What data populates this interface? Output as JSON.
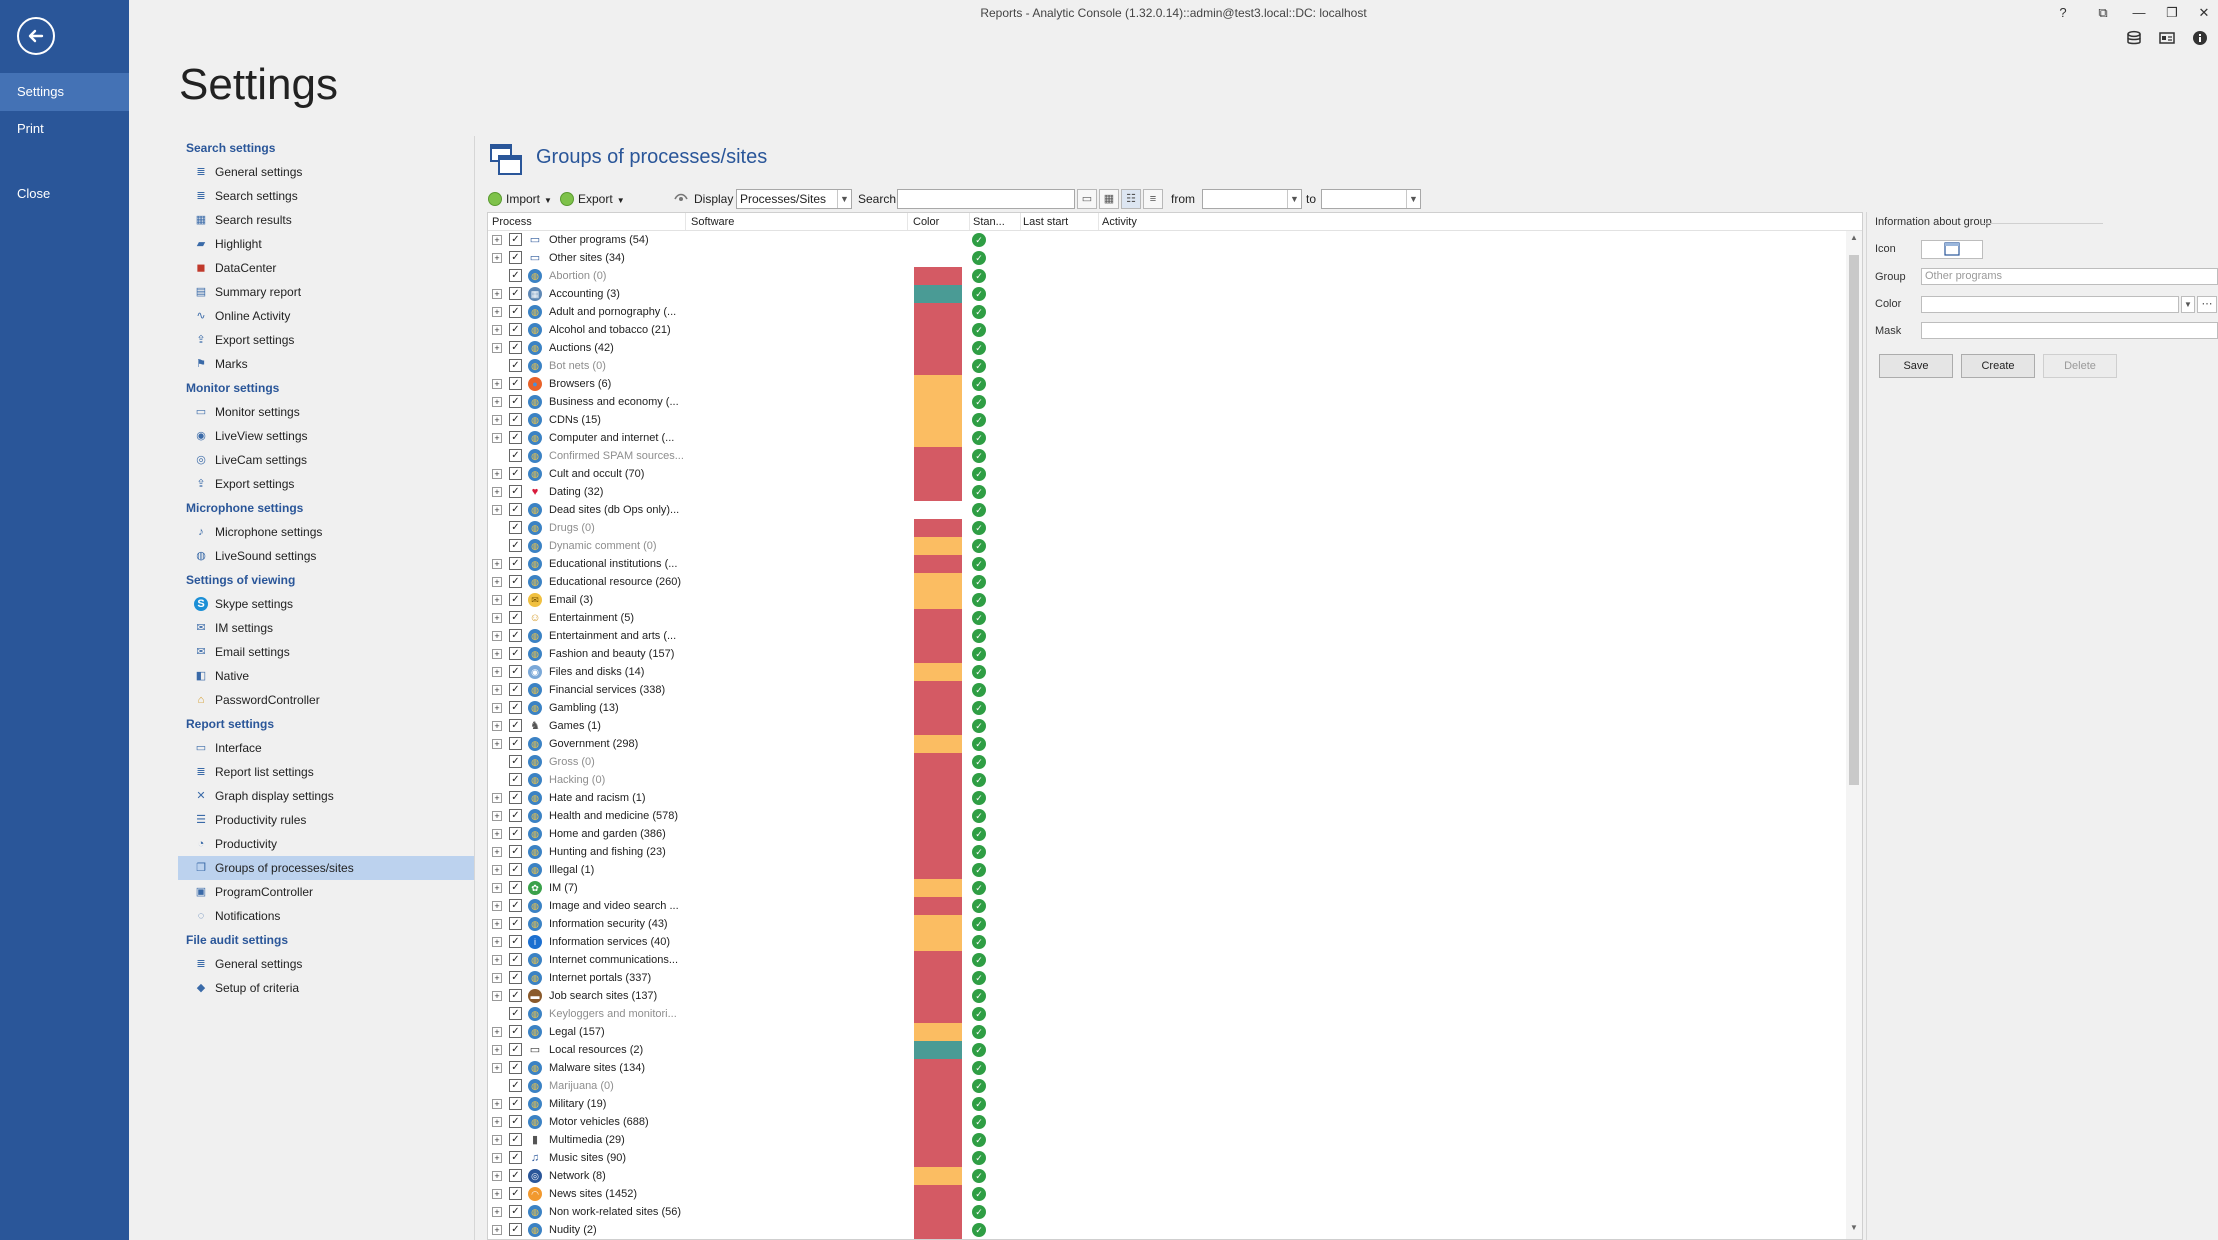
{
  "window": {
    "title": "Reports - Analytic Console (1.32.0.14)::admin@test3.local::DC: localhost",
    "controls": [
      "?",
      "⧉",
      "—",
      "❐",
      "✕"
    ],
    "ribbon_icons": [
      "database-icon",
      "id-card-icon",
      "info-icon"
    ]
  },
  "rail": {
    "items": [
      {
        "label": "Settings",
        "active": true
      },
      {
        "label": "Print",
        "active": false
      },
      {
        "label": "Close",
        "active": false
      }
    ]
  },
  "page": {
    "title": "Settings"
  },
  "nav": {
    "sections": [
      {
        "title": "Search settings",
        "items": [
          {
            "label": "General settings",
            "icon": "list-icon"
          },
          {
            "label": "Search settings",
            "icon": "list-icon"
          },
          {
            "label": "Search results",
            "icon": "table-icon"
          },
          {
            "label": "Highlight",
            "icon": "highlight-icon"
          },
          {
            "label": "DataCenter",
            "icon": "datacenter-icon"
          },
          {
            "label": "Summary report",
            "icon": "report-icon"
          },
          {
            "label": "Online Activity",
            "icon": "pulse-icon"
          },
          {
            "label": "Export settings",
            "icon": "export-icon"
          },
          {
            "label": "Marks",
            "icon": "flag-icon"
          }
        ]
      },
      {
        "title": "Monitor settings",
        "items": [
          {
            "label": "Monitor settings",
            "icon": "monitor-icon"
          },
          {
            "label": "LiveView settings",
            "icon": "eye-icon"
          },
          {
            "label": "LiveCam settings",
            "icon": "camera-icon"
          },
          {
            "label": "Export settings",
            "icon": "export-icon"
          }
        ]
      },
      {
        "title": "Microphone settings",
        "items": [
          {
            "label": "Microphone settings",
            "icon": "microphone-icon"
          },
          {
            "label": "LiveSound settings",
            "icon": "sound-icon"
          }
        ]
      },
      {
        "title": "Settings of viewing",
        "items": [
          {
            "label": "Skype settings",
            "icon": "skype-icon"
          },
          {
            "label": "IM settings",
            "icon": "chat-icon"
          },
          {
            "label": "Email settings",
            "icon": "email-icon"
          },
          {
            "label": "Native",
            "icon": "native-icon"
          },
          {
            "label": "PasswordController",
            "icon": "lock-icon"
          }
        ]
      },
      {
        "title": "Report settings",
        "items": [
          {
            "label": "Interface",
            "icon": "window-icon"
          },
          {
            "label": "Report list settings",
            "icon": "list-icon"
          },
          {
            "label": "Graph display settings",
            "icon": "graph-icon"
          },
          {
            "label": "Productivity rules",
            "icon": "rules-icon"
          },
          {
            "label": "Productivity",
            "icon": "gauge-icon"
          },
          {
            "label": "Groups of processes/sites",
            "icon": "groups-icon",
            "active": true
          },
          {
            "label": "ProgramController",
            "icon": "program-icon"
          },
          {
            "label": "Notifications",
            "icon": "bell-icon"
          }
        ]
      },
      {
        "title": "File audit settings",
        "items": [
          {
            "label": "General settings",
            "icon": "list-icon"
          },
          {
            "label": "Setup of criteria",
            "icon": "tag-icon"
          }
        ]
      }
    ]
  },
  "panel": {
    "title": "Groups of processes/sites",
    "toolbar": {
      "import_label": "Import",
      "export_label": "Export",
      "display_label": "Display",
      "display_value": "Processes/Sites",
      "search_label": "Search",
      "search_value": "",
      "from_label": "from",
      "from_value": "",
      "to_label": "to",
      "to_value": ""
    },
    "columns": [
      "Process",
      "Software",
      "Color",
      "Stan...",
      "Last start",
      "Activity"
    ],
    "rows": [
      {
        "name": "Other programs (54)",
        "expand": true,
        "color": "",
        "icon": "window-icon",
        "dim": false
      },
      {
        "name": "Other sites (34)",
        "expand": true,
        "color": "",
        "icon": "window-icon",
        "dim": false
      },
      {
        "name": "Abortion (0)",
        "expand": false,
        "color": "#d45a64",
        "icon": "globe-icon",
        "dim": true
      },
      {
        "name": "Accounting (3)",
        "expand": true,
        "color": "#4a9b95",
        "icon": "calculator-icon",
        "dim": false
      },
      {
        "name": "Adult and pornography (...",
        "expand": true,
        "color": "#d45a64",
        "icon": "globe-icon",
        "dim": false
      },
      {
        "name": "Alcohol and tobacco (21)",
        "expand": true,
        "color": "#d45a64",
        "icon": "globe-icon",
        "dim": false
      },
      {
        "name": "Auctions (42)",
        "expand": true,
        "color": "#d45a64",
        "icon": "globe-icon",
        "dim": false
      },
      {
        "name": "Bot nets (0)",
        "expand": false,
        "color": "#d45a64",
        "icon": "globe-icon",
        "dim": true
      },
      {
        "name": "Browsers (6)",
        "expand": true,
        "color": "#fbbd62",
        "icon": "browser-icon",
        "dim": false
      },
      {
        "name": "Business and economy (...",
        "expand": true,
        "color": "#fbbd62",
        "icon": "globe-icon",
        "dim": false
      },
      {
        "name": "CDNs (15)",
        "expand": true,
        "color": "#fbbd62",
        "icon": "globe-icon",
        "dim": false
      },
      {
        "name": "Computer and internet (...",
        "expand": true,
        "color": "#fbbd62",
        "icon": "globe-icon",
        "dim": false
      },
      {
        "name": "Confirmed SPAM sources...",
        "expand": false,
        "color": "#d45a64",
        "icon": "globe-icon",
        "dim": true
      },
      {
        "name": "Cult and occult (70)",
        "expand": true,
        "color": "#d45a64",
        "icon": "globe-icon",
        "dim": false
      },
      {
        "name": "Dating (32)",
        "expand": true,
        "color": "#d45a64",
        "icon": "heart-icon",
        "dim": false
      },
      {
        "name": "Dead sites (db Ops only)...",
        "expand": true,
        "color": "",
        "icon": "globe-icon",
        "dim": false
      },
      {
        "name": "Drugs (0)",
        "expand": false,
        "color": "#d45a64",
        "icon": "globe-icon",
        "dim": true
      },
      {
        "name": "Dynamic comment (0)",
        "expand": false,
        "color": "#fbbd62",
        "icon": "globe-icon",
        "dim": true
      },
      {
        "name": "Educational institutions (...",
        "expand": true,
        "color": "#d45a64",
        "icon": "globe-icon",
        "dim": false
      },
      {
        "name": "Educational resource (260)",
        "expand": true,
        "color": "#fbbd62",
        "icon": "globe-icon",
        "dim": false
      },
      {
        "name": "Email (3)",
        "expand": true,
        "color": "#fbbd62",
        "icon": "email-icon",
        "dim": false
      },
      {
        "name": "Entertainment (5)",
        "expand": true,
        "color": "#d45a64",
        "icon": "smiley-icon",
        "dim": false
      },
      {
        "name": "Entertainment and arts (...",
        "expand": true,
        "color": "#d45a64",
        "icon": "globe-icon",
        "dim": false
      },
      {
        "name": "Fashion and beauty (157)",
        "expand": true,
        "color": "#d45a64",
        "icon": "globe-icon",
        "dim": false
      },
      {
        "name": "Files and disks (14)",
        "expand": true,
        "color": "#fbbd62",
        "icon": "disk-icon",
        "dim": false
      },
      {
        "name": "Financial services (338)",
        "expand": true,
        "color": "#d45a64",
        "icon": "globe-icon",
        "dim": false
      },
      {
        "name": "Gambling (13)",
        "expand": true,
        "color": "#d45a64",
        "icon": "globe-icon",
        "dim": false
      },
      {
        "name": "Games (1)",
        "expand": true,
        "color": "#d45a64",
        "icon": "games-icon",
        "dim": false
      },
      {
        "name": "Government (298)",
        "expand": true,
        "color": "#fbbd62",
        "icon": "globe-icon",
        "dim": false
      },
      {
        "name": "Gross (0)",
        "expand": false,
        "color": "#d45a64",
        "icon": "globe-icon",
        "dim": true
      },
      {
        "name": "Hacking (0)",
        "expand": false,
        "color": "#d45a64",
        "icon": "globe-icon",
        "dim": true
      },
      {
        "name": "Hate and racism (1)",
        "expand": true,
        "color": "#d45a64",
        "icon": "globe-icon",
        "dim": false
      },
      {
        "name": "Health and medicine (578)",
        "expand": true,
        "color": "#d45a64",
        "icon": "globe-icon",
        "dim": false
      },
      {
        "name": "Home and garden (386)",
        "expand": true,
        "color": "#d45a64",
        "icon": "globe-icon",
        "dim": false
      },
      {
        "name": "Hunting and fishing (23)",
        "expand": true,
        "color": "#d45a64",
        "icon": "globe-icon",
        "dim": false
      },
      {
        "name": "Illegal (1)",
        "expand": true,
        "color": "#d45a64",
        "icon": "globe-icon",
        "dim": false
      },
      {
        "name": "IM (7)",
        "expand": true,
        "color": "#fbbd62",
        "icon": "im-icon",
        "dim": false
      },
      {
        "name": "Image and video search ...",
        "expand": true,
        "color": "#d45a64",
        "icon": "globe-icon",
        "dim": false
      },
      {
        "name": "Information security (43)",
        "expand": true,
        "color": "#fbbd62",
        "icon": "globe-icon",
        "dim": false
      },
      {
        "name": "Information services (40)",
        "expand": true,
        "color": "#fbbd62",
        "icon": "info-icon",
        "dim": false
      },
      {
        "name": "Internet communications...",
        "expand": true,
        "color": "#d45a64",
        "icon": "globe-icon",
        "dim": false
      },
      {
        "name": "Internet portals (337)",
        "expand": true,
        "color": "#d45a64",
        "icon": "globe-icon",
        "dim": false
      },
      {
        "name": "Job search sites (137)",
        "expand": true,
        "color": "#d45a64",
        "icon": "briefcase-icon",
        "dim": false
      },
      {
        "name": "Keyloggers and monitori...",
        "expand": false,
        "color": "#d45a64",
        "icon": "globe-icon",
        "dim": true
      },
      {
        "name": "Legal (157)",
        "expand": true,
        "color": "#fbbd62",
        "icon": "globe-icon",
        "dim": false
      },
      {
        "name": "Local resources (2)",
        "expand": true,
        "color": "#4a9b95",
        "icon": "computer-icon",
        "dim": false
      },
      {
        "name": "Malware sites (134)",
        "expand": true,
        "color": "#d45a64",
        "icon": "globe-icon",
        "dim": false
      },
      {
        "name": "Marijuana (0)",
        "expand": false,
        "color": "#d45a64",
        "icon": "globe-icon",
        "dim": true
      },
      {
        "name": "Military (19)",
        "expand": true,
        "color": "#d45a64",
        "icon": "globe-icon",
        "dim": false
      },
      {
        "name": "Motor vehicles (688)",
        "expand": true,
        "color": "#d45a64",
        "icon": "globe-icon",
        "dim": false
      },
      {
        "name": "Multimedia (29)",
        "expand": true,
        "color": "#d45a64",
        "icon": "multimedia-icon",
        "dim": false
      },
      {
        "name": "Music sites (90)",
        "expand": true,
        "color": "#d45a64",
        "icon": "music-icon",
        "dim": false
      },
      {
        "name": "Network (8)",
        "expand": true,
        "color": "#fbbd62",
        "icon": "network-icon",
        "dim": false
      },
      {
        "name": "News sites (1452)",
        "expand": true,
        "color": "#d45a64",
        "icon": "rss-icon",
        "dim": false
      },
      {
        "name": "Non work-related sites (56)",
        "expand": true,
        "color": "#d45a64",
        "icon": "globe-icon",
        "dim": false
      },
      {
        "name": "Nudity (2)",
        "expand": true,
        "color": "#d45a64",
        "icon": "globe-icon",
        "dim": false
      }
    ]
  },
  "info": {
    "title": "Information about group",
    "icon_label": "Icon",
    "group_label": "Group",
    "group_value": "Other programs",
    "color_label": "Color",
    "mask_label": "Mask",
    "mask_value": "",
    "save_label": "Save",
    "create_label": "Create",
    "delete_label": "Delete"
  }
}
